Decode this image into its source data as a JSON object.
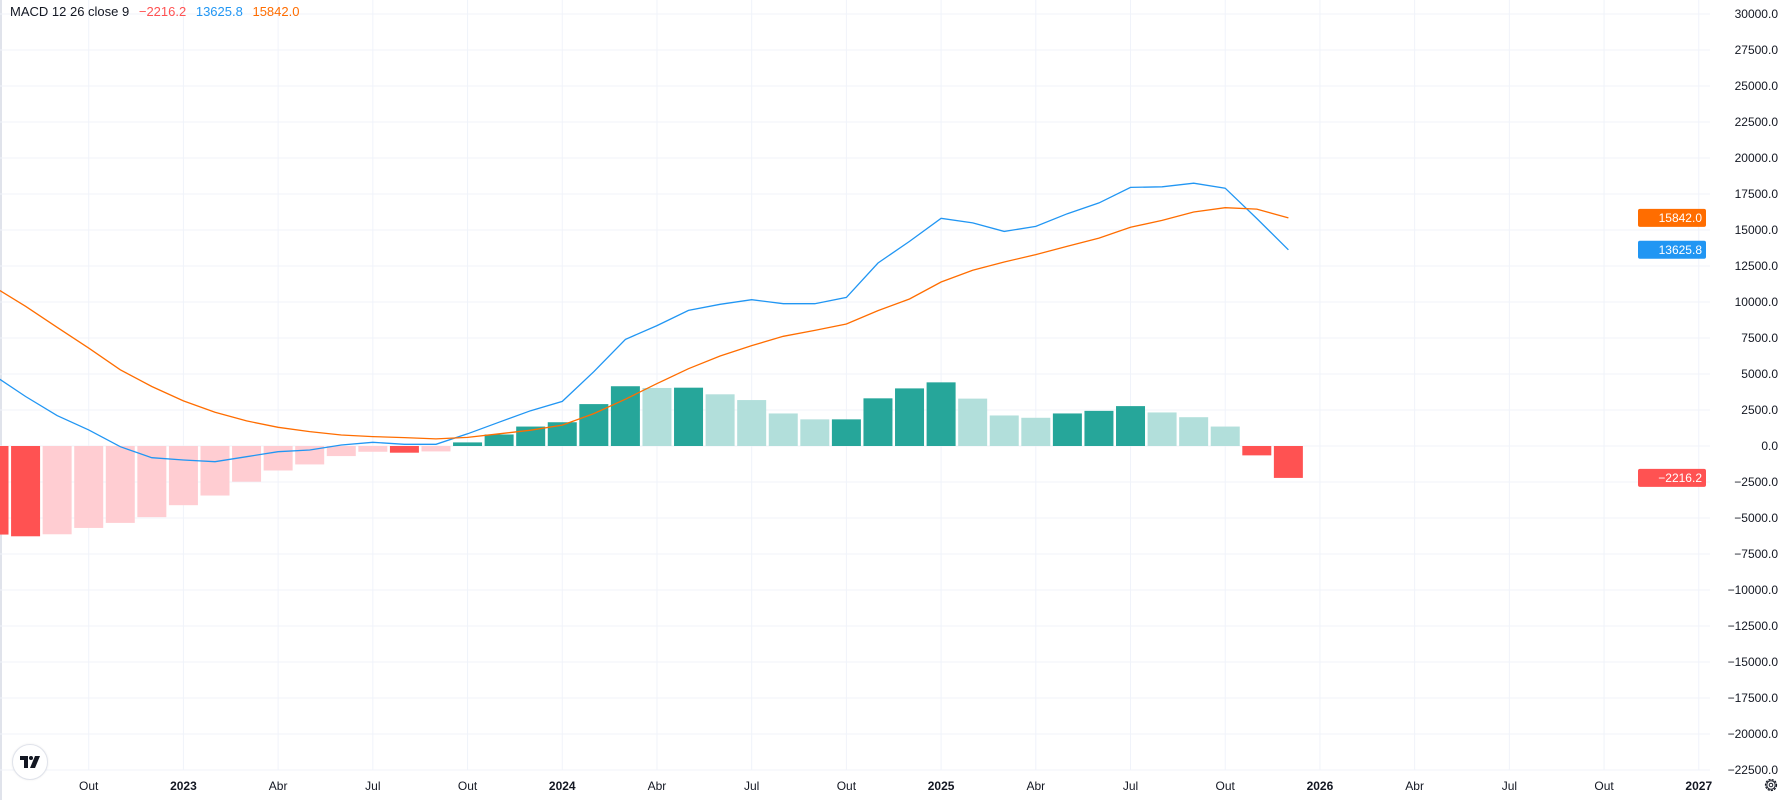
{
  "legend": {
    "title": "MACD 12 26 close 9",
    "histogram_value": "−2216.2",
    "macd_value": "13625.8",
    "signal_value": "15842.0"
  },
  "colors": {
    "macd": "#2196F3",
    "signal": "#FF6D00",
    "hist_pos_rising": "#26A69A",
    "hist_pos_falling": "#B2DFDB",
    "hist_neg_falling": "#FF5252",
    "hist_neg_rising": "#FFCDD2",
    "grid": "#F0F3FA",
    "text": "#131722"
  },
  "chart_data": {
    "type": "bar",
    "indicator": "MACD 12 26 close 9",
    "x": [
      "2022-07",
      "2022-08",
      "2022-09",
      "2022-10",
      "2022-11",
      "2022-12",
      "2023-01",
      "2023-02",
      "2023-03",
      "2023-04",
      "2023-05",
      "2023-06",
      "2023-07",
      "2023-08",
      "2023-09",
      "2023-10",
      "2023-11",
      "2023-12",
      "2024-01",
      "2024-02",
      "2024-03",
      "2024-04",
      "2024-05",
      "2024-06",
      "2024-07",
      "2024-08",
      "2024-09",
      "2024-10",
      "2024-11",
      "2024-12",
      "2025-01",
      "2025-02",
      "2025-03",
      "2025-04",
      "2025-05",
      "2025-06",
      "2025-07",
      "2025-08",
      "2025-09",
      "2025-10",
      "2025-11",
      "2025-12"
    ],
    "series": [
      {
        "type": "bar",
        "values": [
          -6150,
          -6270,
          -6130,
          -5690,
          -5340,
          -4940,
          -4110,
          -3440,
          -2480,
          -1700,
          -1280,
          -700,
          -400,
          -465,
          -375,
          250,
          800,
          1350,
          1650,
          2910,
          4150,
          4030,
          4050,
          3590,
          3190,
          2260,
          1850,
          1850,
          3310,
          4000,
          4420,
          3290,
          2120,
          1960,
          2260,
          2440,
          2770,
          2330,
          2000,
          1350,
          -650,
          -2216.2
        ]
      },
      {
        "type": "line",
        "values": [
          4900,
          3435,
          2110,
          1115,
          -46,
          -810,
          -975,
          -1090,
          -740,
          -395,
          -280,
          70,
          255,
          115,
          115,
          850,
          1650,
          2450,
          3100,
          5160,
          7400,
          8360,
          9420,
          9840,
          10160,
          9880,
          9880,
          10320,
          12710,
          14210,
          15810,
          15490,
          14900,
          15250,
          16130,
          16880,
          17960,
          18000,
          18250,
          17900,
          15800,
          13625.8
        ]
      },
      {
        "type": "line",
        "values": [
          11050,
          9703,
          8240,
          6800,
          5290,
          4130,
          3130,
          2345,
          1740,
          1300,
          1000,
          766,
          650,
          580,
          490,
          600,
          850,
          1100,
          1450,
          2250,
          3250,
          4330,
          5370,
          6250,
          6970,
          7620,
          8030,
          8470,
          9400,
          10210,
          11390,
          12200,
          12780,
          13290,
          13870,
          14440,
          15190,
          15670,
          16250,
          16550,
          16450,
          15842.0
        ]
      }
    ],
    "ylim": [
      -22500,
      30000
    ],
    "y_ticks": [
      "30000.0",
      "27500.0",
      "25000.0",
      "22500.0",
      "20000.0",
      "17500.0",
      "15000.0",
      "12500.0",
      "10000.0",
      "7500.0",
      "5000.0",
      "2500.0",
      "0.0",
      "−2500.0",
      "−5000.0",
      "−7500.0",
      "−10000.0",
      "−12500.0",
      "−15000.0",
      "−17500.0",
      "−20000.0",
      "−22500.0"
    ],
    "x_ticks": [
      {
        "label": "Out",
        "month": "2022-10"
      },
      {
        "label": "2023",
        "month": "2023-01",
        "year": true
      },
      {
        "label": "Abr",
        "month": "2023-04"
      },
      {
        "label": "Jul",
        "month": "2023-07"
      },
      {
        "label": "Out",
        "month": "2023-10"
      },
      {
        "label": "2024",
        "month": "2024-01",
        "year": true
      },
      {
        "label": "Abr",
        "month": "2024-04"
      },
      {
        "label": "Jul",
        "month": "2024-07"
      },
      {
        "label": "Out",
        "month": "2024-10"
      },
      {
        "label": "2025",
        "month": "2025-01",
        "year": true
      },
      {
        "label": "Abr",
        "month": "2025-04"
      },
      {
        "label": "Jul",
        "month": "2025-07"
      },
      {
        "label": "Out",
        "month": "2025-10"
      },
      {
        "label": "2026",
        "month": "2026-01",
        "year": true
      },
      {
        "label": "Abr",
        "month": "2026-04"
      },
      {
        "label": "Jul",
        "month": "2026-07"
      },
      {
        "label": "Out",
        "month": "2026-10"
      },
      {
        "label": "2027",
        "month": "2027-01",
        "year": true
      }
    ],
    "price_labels": [
      {
        "text": "15842.0",
        "value": 15842.0,
        "color": "#FF6D00"
      },
      {
        "text": "13625.8",
        "value": 13625.8,
        "color": "#2196F3"
      },
      {
        "text": "−2216.2",
        "value": -2216.2,
        "color": "#FF5252"
      }
    ],
    "grid": true
  }
}
